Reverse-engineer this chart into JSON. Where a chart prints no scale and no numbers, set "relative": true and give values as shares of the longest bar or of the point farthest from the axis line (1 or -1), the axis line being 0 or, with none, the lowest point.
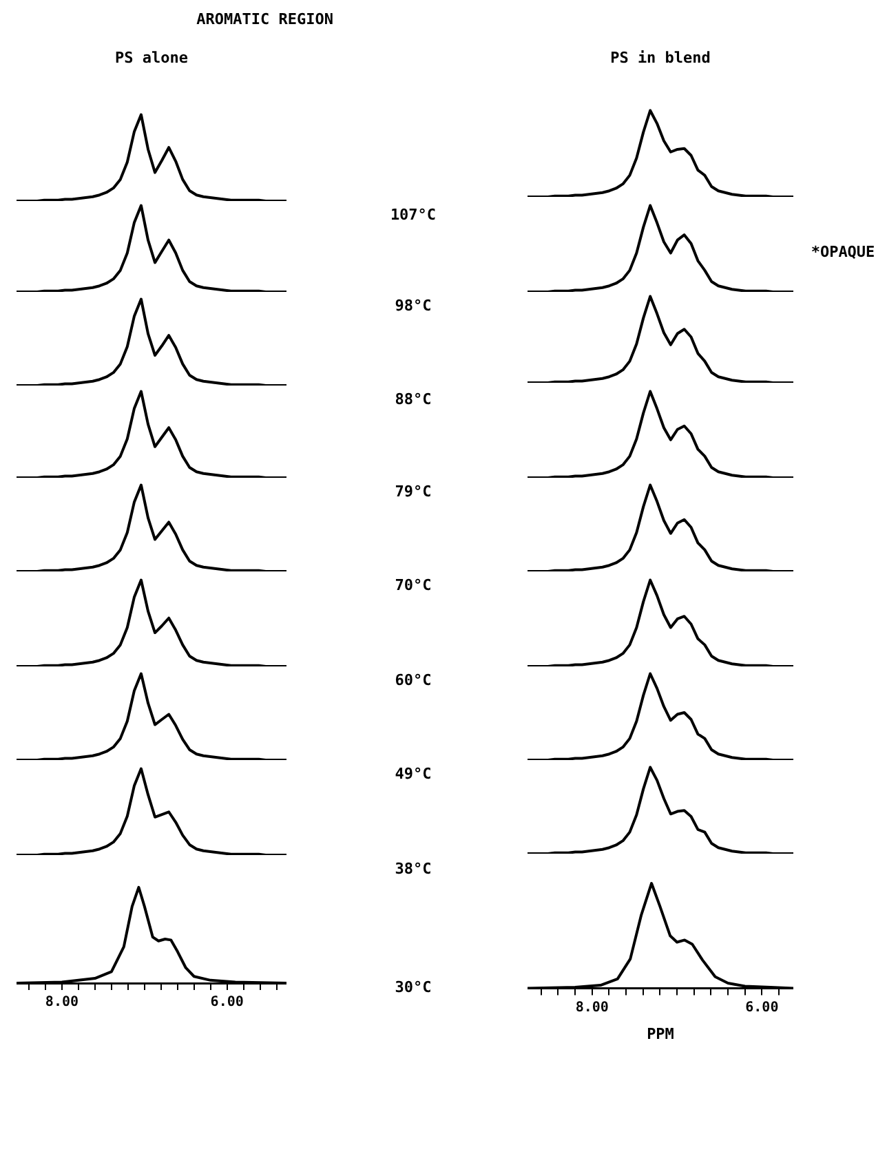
{
  "chart_data": [
    {
      "type": "line",
      "title": "AROMATIC REGION",
      "subtitle": "PS alone",
      "relative": true,
      "tick_labels": false,
      "legend": false,
      "color": "#000000",
      "annotations": [
        "107°C"
      ],
      "categories": [
        null,
        null,
        null,
        null,
        null,
        null,
        null,
        null,
        null,
        null,
        null,
        null,
        null,
        null,
        null,
        null,
        null,
        null,
        null,
        null,
        null,
        null,
        null,
        null,
        null,
        null,
        null,
        null,
        null,
        null,
        null,
        null,
        null,
        null,
        null,
        null,
        null,
        null,
        null,
        null
      ],
      "values": [
        0,
        0,
        0,
        0,
        0.01,
        0.01,
        0.01,
        0.02,
        0.02,
        0.03,
        0.04,
        0.05,
        0.07,
        0.1,
        0.15,
        0.25,
        0.45,
        0.8,
        1,
        0.6,
        0.33,
        0.47,
        0.62,
        0.46,
        0.25,
        0.12,
        0.07,
        0.05,
        0.04,
        0.03,
        0.02,
        0.01,
        0.01,
        0.01,
        0.01,
        0.01,
        0,
        0,
        0,
        0
      ]
    },
    {
      "type": "line",
      "relative": true,
      "tick_labels": false,
      "legend": false,
      "color": "#000000",
      "annotations": [
        "98°C"
      ],
      "categories": [
        null,
        null,
        null,
        null,
        null,
        null,
        null,
        null,
        null,
        null,
        null,
        null,
        null,
        null,
        null,
        null,
        null,
        null,
        null,
        null,
        null,
        null,
        null,
        null,
        null,
        null,
        null,
        null,
        null,
        null,
        null,
        null,
        null,
        null,
        null,
        null,
        null,
        null,
        null,
        null
      ],
      "values": [
        0,
        0,
        0,
        0,
        0.01,
        0.01,
        0.01,
        0.02,
        0.02,
        0.03,
        0.04,
        0.05,
        0.07,
        0.1,
        0.15,
        0.25,
        0.45,
        0.8,
        1,
        0.6,
        0.34,
        0.47,
        0.6,
        0.45,
        0.25,
        0.12,
        0.07,
        0.05,
        0.04,
        0.03,
        0.02,
        0.01,
        0.01,
        0.01,
        0.01,
        0.01,
        0,
        0,
        0,
        0
      ]
    },
    {
      "type": "line",
      "relative": true,
      "tick_labels": false,
      "legend": false,
      "color": "#000000",
      "annotations": [
        "88°C"
      ],
      "categories": [
        null,
        null,
        null,
        null,
        null,
        null,
        null,
        null,
        null,
        null,
        null,
        null,
        null,
        null,
        null,
        null,
        null,
        null,
        null,
        null,
        null,
        null,
        null,
        null,
        null,
        null,
        null,
        null,
        null,
        null,
        null,
        null,
        null,
        null,
        null,
        null,
        null,
        null,
        null,
        null
      ],
      "values": [
        0,
        0,
        0,
        0,
        0.01,
        0.01,
        0.01,
        0.02,
        0.02,
        0.03,
        0.04,
        0.05,
        0.07,
        0.1,
        0.15,
        0.25,
        0.45,
        0.8,
        1,
        0.6,
        0.35,
        0.46,
        0.58,
        0.44,
        0.25,
        0.12,
        0.07,
        0.05,
        0.04,
        0.03,
        0.02,
        0.01,
        0.01,
        0.01,
        0.01,
        0.01,
        0,
        0,
        0,
        0
      ]
    },
    {
      "type": "line",
      "relative": true,
      "tick_labels": false,
      "legend": false,
      "color": "#000000",
      "annotations": [
        "79°C"
      ],
      "categories": [
        null,
        null,
        null,
        null,
        null,
        null,
        null,
        null,
        null,
        null,
        null,
        null,
        null,
        null,
        null,
        null,
        null,
        null,
        null,
        null,
        null,
        null,
        null,
        null,
        null,
        null,
        null,
        null,
        null,
        null,
        null,
        null,
        null,
        null,
        null,
        null,
        null,
        null,
        null,
        null
      ],
      "values": [
        0,
        0,
        0,
        0,
        0.01,
        0.01,
        0.01,
        0.02,
        0.02,
        0.03,
        0.04,
        0.05,
        0.07,
        0.1,
        0.15,
        0.25,
        0.45,
        0.8,
        1,
        0.62,
        0.36,
        0.47,
        0.58,
        0.44,
        0.25,
        0.12,
        0.07,
        0.05,
        0.04,
        0.03,
        0.02,
        0.01,
        0.01,
        0.01,
        0.01,
        0.01,
        0,
        0,
        0,
        0
      ]
    },
    {
      "type": "line",
      "relative": true,
      "tick_labels": false,
      "legend": false,
      "color": "#000000",
      "annotations": [
        "70°C"
      ],
      "categories": [
        null,
        null,
        null,
        null,
        null,
        null,
        null,
        null,
        null,
        null,
        null,
        null,
        null,
        null,
        null,
        null,
        null,
        null,
        null,
        null,
        null,
        null,
        null,
        null,
        null,
        null,
        null,
        null,
        null,
        null,
        null,
        null,
        null,
        null,
        null,
        null,
        null,
        null,
        null,
        null
      ],
      "values": [
        0,
        0,
        0,
        0,
        0.01,
        0.01,
        0.01,
        0.02,
        0.02,
        0.03,
        0.04,
        0.05,
        0.07,
        0.1,
        0.15,
        0.25,
        0.45,
        0.8,
        1,
        0.62,
        0.37,
        0.47,
        0.57,
        0.43,
        0.25,
        0.12,
        0.07,
        0.05,
        0.04,
        0.03,
        0.02,
        0.01,
        0.01,
        0.01,
        0.01,
        0.01,
        0,
        0,
        0,
        0
      ]
    },
    {
      "type": "line",
      "relative": true,
      "tick_labels": false,
      "legend": false,
      "color": "#000000",
      "annotations": [
        "60°C"
      ],
      "categories": [
        null,
        null,
        null,
        null,
        null,
        null,
        null,
        null,
        null,
        null,
        null,
        null,
        null,
        null,
        null,
        null,
        null,
        null,
        null,
        null,
        null,
        null,
        null,
        null,
        null,
        null,
        null,
        null,
        null,
        null,
        null,
        null,
        null,
        null,
        null,
        null,
        null,
        null,
        null,
        null
      ],
      "values": [
        0,
        0,
        0,
        0,
        0.01,
        0.01,
        0.01,
        0.02,
        0.02,
        0.03,
        0.04,
        0.05,
        0.07,
        0.1,
        0.15,
        0.25,
        0.45,
        0.8,
        1,
        0.64,
        0.39,
        0.47,
        0.56,
        0.42,
        0.25,
        0.12,
        0.07,
        0.05,
        0.04,
        0.03,
        0.02,
        0.01,
        0.01,
        0.01,
        0.01,
        0.01,
        0,
        0,
        0,
        0
      ]
    },
    {
      "type": "line",
      "relative": true,
      "tick_labels": false,
      "legend": false,
      "color": "#000000",
      "annotations": [
        "49°C"
      ],
      "categories": [
        null,
        null,
        null,
        null,
        null,
        null,
        null,
        null,
        null,
        null,
        null,
        null,
        null,
        null,
        null,
        null,
        null,
        null,
        null,
        null,
        null,
        null,
        null,
        null,
        null,
        null,
        null,
        null,
        null,
        null,
        null,
        null,
        null,
        null,
        null,
        null,
        null,
        null,
        null,
        null
      ],
      "values": [
        0,
        0,
        0,
        0,
        0.01,
        0.01,
        0.01,
        0.02,
        0.02,
        0.03,
        0.04,
        0.05,
        0.07,
        0.1,
        0.15,
        0.25,
        0.45,
        0.8,
        1,
        0.66,
        0.41,
        0.47,
        0.53,
        0.4,
        0.24,
        0.12,
        0.07,
        0.05,
        0.04,
        0.03,
        0.02,
        0.01,
        0.01,
        0.01,
        0.01,
        0.01,
        0,
        0,
        0,
        0
      ]
    },
    {
      "type": "line",
      "relative": true,
      "tick_labels": false,
      "legend": false,
      "color": "#000000",
      "annotations": [
        "38°C"
      ],
      "categories": [
        null,
        null,
        null,
        null,
        null,
        null,
        null,
        null,
        null,
        null,
        null,
        null,
        null,
        null,
        null,
        null,
        null,
        null,
        null,
        null,
        null,
        null,
        null,
        null,
        null,
        null,
        null,
        null,
        null,
        null,
        null,
        null,
        null,
        null,
        null,
        null,
        null,
        null,
        null,
        null
      ],
      "values": [
        0,
        0,
        0,
        0,
        0.01,
        0.01,
        0.01,
        0.02,
        0.02,
        0.03,
        0.04,
        0.05,
        0.07,
        0.1,
        0.15,
        0.25,
        0.45,
        0.8,
        1,
        0.7,
        0.44,
        0.47,
        0.5,
        0.38,
        0.23,
        0.12,
        0.07,
        0.05,
        0.04,
        0.03,
        0.02,
        0.01,
        0.01,
        0.01,
        0.01,
        0.01,
        0,
        0,
        0,
        0
      ]
    },
    {
      "type": "line",
      "relative": true,
      "tick_labels": "x",
      "legend": false,
      "xlim": [
        8.55,
        5.28
      ],
      "xticks": [
        {
          "value": 8.4,
          "label": null
        },
        {
          "value": 8.2,
          "label": null
        },
        {
          "value": 8,
          "label": "8.00"
        },
        {
          "value": 7.8,
          "label": null
        },
        {
          "value": 7.6,
          "label": null
        },
        {
          "value": 7.4,
          "label": null
        },
        {
          "value": 7.2,
          "label": null
        },
        {
          "value": 7,
          "label": null
        },
        {
          "value": 6.8,
          "label": null
        },
        {
          "value": 6.6,
          "label": null
        },
        {
          "value": 6.4,
          "label": null
        },
        {
          "value": 6.2,
          "label": null
        },
        {
          "value": 6,
          "label": "6.00"
        },
        {
          "value": 5.8,
          "label": null
        },
        {
          "value": 5.6,
          "label": null
        },
        {
          "value": 5.4,
          "label": null
        }
      ],
      "x": [
        8.55,
        8.0,
        7.6,
        7.4,
        7.25,
        7.15,
        7.07,
        7.0,
        6.9,
        6.83,
        6.75,
        6.68,
        6.6,
        6.5,
        6.4,
        6.2,
        5.9,
        5.28
      ],
      "color": "#000000",
      "annotations": [
        "30°C"
      ],
      "values": [
        0,
        0.01,
        0.05,
        0.12,
        0.38,
        0.8,
        1,
        0.8,
        0.48,
        0.44,
        0.46,
        0.45,
        0.33,
        0.16,
        0.07,
        0.03,
        0.01,
        0
      ]
    },
    {
      "type": "line",
      "subtitle": "PS in blend",
      "relative": true,
      "tick_labels": false,
      "legend": false,
      "color": "#000000",
      "categories": [
        null,
        null,
        null,
        null,
        null,
        null,
        null,
        null,
        null,
        null,
        null,
        null,
        null,
        null,
        null,
        null,
        null,
        null,
        null,
        null,
        null,
        null,
        null,
        null,
        null,
        null,
        null,
        null,
        null,
        null,
        null,
        null,
        null,
        null,
        null,
        null,
        null,
        null,
        null,
        null
      ],
      "values": [
        0,
        0,
        0,
        0,
        0.01,
        0.01,
        0.01,
        0.02,
        0.02,
        0.03,
        0.04,
        0.05,
        0.07,
        0.1,
        0.15,
        0.25,
        0.45,
        0.75,
        1,
        0.85,
        0.65,
        0.52,
        0.55,
        0.56,
        0.48,
        0.31,
        0.25,
        0.12,
        0.07,
        0.05,
        0.03,
        0.02,
        0.01,
        0.01,
        0.01,
        0.01,
        0,
        0,
        0,
        0
      ]
    },
    {
      "type": "line",
      "relative": true,
      "tick_labels": false,
      "legend": false,
      "color": "#000000",
      "annotations": [
        "*OPAQUE"
      ],
      "categories": [
        null,
        null,
        null,
        null,
        null,
        null,
        null,
        null,
        null,
        null,
        null,
        null,
        null,
        null,
        null,
        null,
        null,
        null,
        null,
        null,
        null,
        null,
        null,
        null,
        null,
        null,
        null,
        null,
        null,
        null,
        null,
        null,
        null,
        null,
        null,
        null,
        null,
        null,
        null,
        null
      ],
      "values": [
        0,
        0,
        0,
        0,
        0.01,
        0.01,
        0.01,
        0.02,
        0.02,
        0.03,
        0.04,
        0.05,
        0.07,
        0.1,
        0.15,
        0.25,
        0.45,
        0.75,
        1,
        0.8,
        0.58,
        0.45,
        0.6,
        0.66,
        0.56,
        0.36,
        0.25,
        0.12,
        0.07,
        0.05,
        0.03,
        0.02,
        0.01,
        0.01,
        0.01,
        0.01,
        0,
        0,
        0,
        0
      ]
    },
    {
      "type": "line",
      "relative": true,
      "tick_labels": false,
      "legend": false,
      "color": "#000000",
      "categories": [
        null,
        null,
        null,
        null,
        null,
        null,
        null,
        null,
        null,
        null,
        null,
        null,
        null,
        null,
        null,
        null,
        null,
        null,
        null,
        null,
        null,
        null,
        null,
        null,
        null,
        null,
        null,
        null,
        null,
        null,
        null,
        null,
        null,
        null,
        null,
        null,
        null,
        null,
        null,
        null
      ],
      "values": [
        0,
        0,
        0,
        0,
        0.01,
        0.01,
        0.01,
        0.02,
        0.02,
        0.03,
        0.04,
        0.05,
        0.07,
        0.1,
        0.15,
        0.25,
        0.45,
        0.75,
        1,
        0.8,
        0.58,
        0.44,
        0.57,
        0.62,
        0.53,
        0.34,
        0.25,
        0.12,
        0.07,
        0.05,
        0.03,
        0.02,
        0.01,
        0.01,
        0.01,
        0.01,
        0,
        0,
        0,
        0
      ]
    },
    {
      "type": "line",
      "relative": true,
      "tick_labels": false,
      "legend": false,
      "color": "#000000",
      "categories": [
        null,
        null,
        null,
        null,
        null,
        null,
        null,
        null,
        null,
        null,
        null,
        null,
        null,
        null,
        null,
        null,
        null,
        null,
        null,
        null,
        null,
        null,
        null,
        null,
        null,
        null,
        null,
        null,
        null,
        null,
        null,
        null,
        null,
        null,
        null,
        null,
        null,
        null,
        null,
        null
      ],
      "values": [
        0,
        0,
        0,
        0,
        0.01,
        0.01,
        0.01,
        0.02,
        0.02,
        0.03,
        0.04,
        0.05,
        0.07,
        0.1,
        0.15,
        0.25,
        0.45,
        0.75,
        1,
        0.8,
        0.58,
        0.44,
        0.56,
        0.6,
        0.51,
        0.33,
        0.25,
        0.12,
        0.07,
        0.05,
        0.03,
        0.02,
        0.01,
        0.01,
        0.01,
        0.01,
        0,
        0,
        0,
        0
      ]
    },
    {
      "type": "line",
      "relative": true,
      "tick_labels": false,
      "legend": false,
      "color": "#000000",
      "categories": [
        null,
        null,
        null,
        null,
        null,
        null,
        null,
        null,
        null,
        null,
        null,
        null,
        null,
        null,
        null,
        null,
        null,
        null,
        null,
        null,
        null,
        null,
        null,
        null,
        null,
        null,
        null,
        null,
        null,
        null,
        null,
        null,
        null,
        null,
        null,
        null,
        null,
        null,
        null,
        null
      ],
      "values": [
        0,
        0,
        0,
        0,
        0.01,
        0.01,
        0.01,
        0.02,
        0.02,
        0.03,
        0.04,
        0.05,
        0.07,
        0.1,
        0.15,
        0.25,
        0.45,
        0.75,
        1,
        0.81,
        0.59,
        0.44,
        0.56,
        0.6,
        0.51,
        0.33,
        0.25,
        0.12,
        0.07,
        0.05,
        0.03,
        0.02,
        0.01,
        0.01,
        0.01,
        0.01,
        0,
        0,
        0,
        0
      ]
    },
    {
      "type": "line",
      "relative": true,
      "tick_labels": false,
      "legend": false,
      "color": "#000000",
      "categories": [
        null,
        null,
        null,
        null,
        null,
        null,
        null,
        null,
        null,
        null,
        null,
        null,
        null,
        null,
        null,
        null,
        null,
        null,
        null,
        null,
        null,
        null,
        null,
        null,
        null,
        null,
        null,
        null,
        null,
        null,
        null,
        null,
        null,
        null,
        null,
        null,
        null,
        null,
        null,
        null
      ],
      "values": [
        0,
        0,
        0,
        0,
        0.01,
        0.01,
        0.01,
        0.02,
        0.02,
        0.03,
        0.04,
        0.05,
        0.07,
        0.1,
        0.15,
        0.25,
        0.45,
        0.75,
        1,
        0.82,
        0.6,
        0.45,
        0.55,
        0.58,
        0.49,
        0.32,
        0.25,
        0.12,
        0.07,
        0.05,
        0.03,
        0.02,
        0.01,
        0.01,
        0.01,
        0.01,
        0,
        0,
        0,
        0
      ]
    },
    {
      "type": "line",
      "relative": true,
      "tick_labels": false,
      "legend": false,
      "color": "#000000",
      "categories": [
        null,
        null,
        null,
        null,
        null,
        null,
        null,
        null,
        null,
        null,
        null,
        null,
        null,
        null,
        null,
        null,
        null,
        null,
        null,
        null,
        null,
        null,
        null,
        null,
        null,
        null,
        null,
        null,
        null,
        null,
        null,
        null,
        null,
        null,
        null,
        null,
        null,
        null,
        null,
        null
      ],
      "values": [
        0,
        0,
        0,
        0,
        0.01,
        0.01,
        0.01,
        0.02,
        0.02,
        0.03,
        0.04,
        0.05,
        0.07,
        0.1,
        0.15,
        0.25,
        0.45,
        0.75,
        1,
        0.83,
        0.62,
        0.46,
        0.53,
        0.55,
        0.47,
        0.3,
        0.25,
        0.12,
        0.07,
        0.05,
        0.03,
        0.02,
        0.01,
        0.01,
        0.01,
        0.01,
        0,
        0,
        0,
        0
      ]
    },
    {
      "type": "line",
      "relative": true,
      "tick_labels": false,
      "legend": false,
      "color": "#000000",
      "categories": [
        null,
        null,
        null,
        null,
        null,
        null,
        null,
        null,
        null,
        null,
        null,
        null,
        null,
        null,
        null,
        null,
        null,
        null,
        null,
        null,
        null,
        null,
        null,
        null,
        null,
        null,
        null,
        null,
        null,
        null,
        null,
        null,
        null,
        null,
        null,
        null,
        null,
        null,
        null,
        null
      ],
      "values": [
        0,
        0,
        0,
        0,
        0.01,
        0.01,
        0.01,
        0.02,
        0.02,
        0.03,
        0.04,
        0.05,
        0.07,
        0.1,
        0.15,
        0.25,
        0.45,
        0.75,
        1,
        0.85,
        0.64,
        0.46,
        0.49,
        0.5,
        0.43,
        0.28,
        0.25,
        0.12,
        0.07,
        0.05,
        0.03,
        0.02,
        0.01,
        0.01,
        0.01,
        0.01,
        0,
        0,
        0,
        0
      ]
    },
    {
      "type": "line",
      "relative": true,
      "tick_labels": "x",
      "legend": false,
      "xlim": [
        8.76,
        5.63
      ],
      "xlabel": "PPM",
      "xticks": [
        {
          "value": 8.6,
          "label": null
        },
        {
          "value": 8.4,
          "label": null
        },
        {
          "value": 8.2,
          "label": null
        },
        {
          "value": 8,
          "label": "8.00"
        },
        {
          "value": 7.8,
          "label": null
        },
        {
          "value": 7.6,
          "label": null
        },
        {
          "value": 7.4,
          "label": null
        },
        {
          "value": 7.2,
          "label": null
        },
        {
          "value": 7,
          "label": null
        },
        {
          "value": 6.8,
          "label": null
        },
        {
          "value": 6.6,
          "label": null
        },
        {
          "value": 6.4,
          "label": null
        },
        {
          "value": 6.2,
          "label": null
        },
        {
          "value": 6,
          "label": "6.00"
        },
        {
          "value": 5.8,
          "label": null
        }
      ],
      "x": [
        8.76,
        8.2,
        7.9,
        7.7,
        7.55,
        7.42,
        7.3,
        7.2,
        7.08,
        7.0,
        6.91,
        6.82,
        6.7,
        6.55,
        6.4,
        6.2,
        5.9,
        5.63
      ],
      "color": "#000000",
      "values": [
        0,
        0.01,
        0.03,
        0.09,
        0.28,
        0.7,
        1,
        0.78,
        0.5,
        0.44,
        0.46,
        0.42,
        0.27,
        0.11,
        0.05,
        0.02,
        0.01,
        0
      ]
    }
  ]
}
